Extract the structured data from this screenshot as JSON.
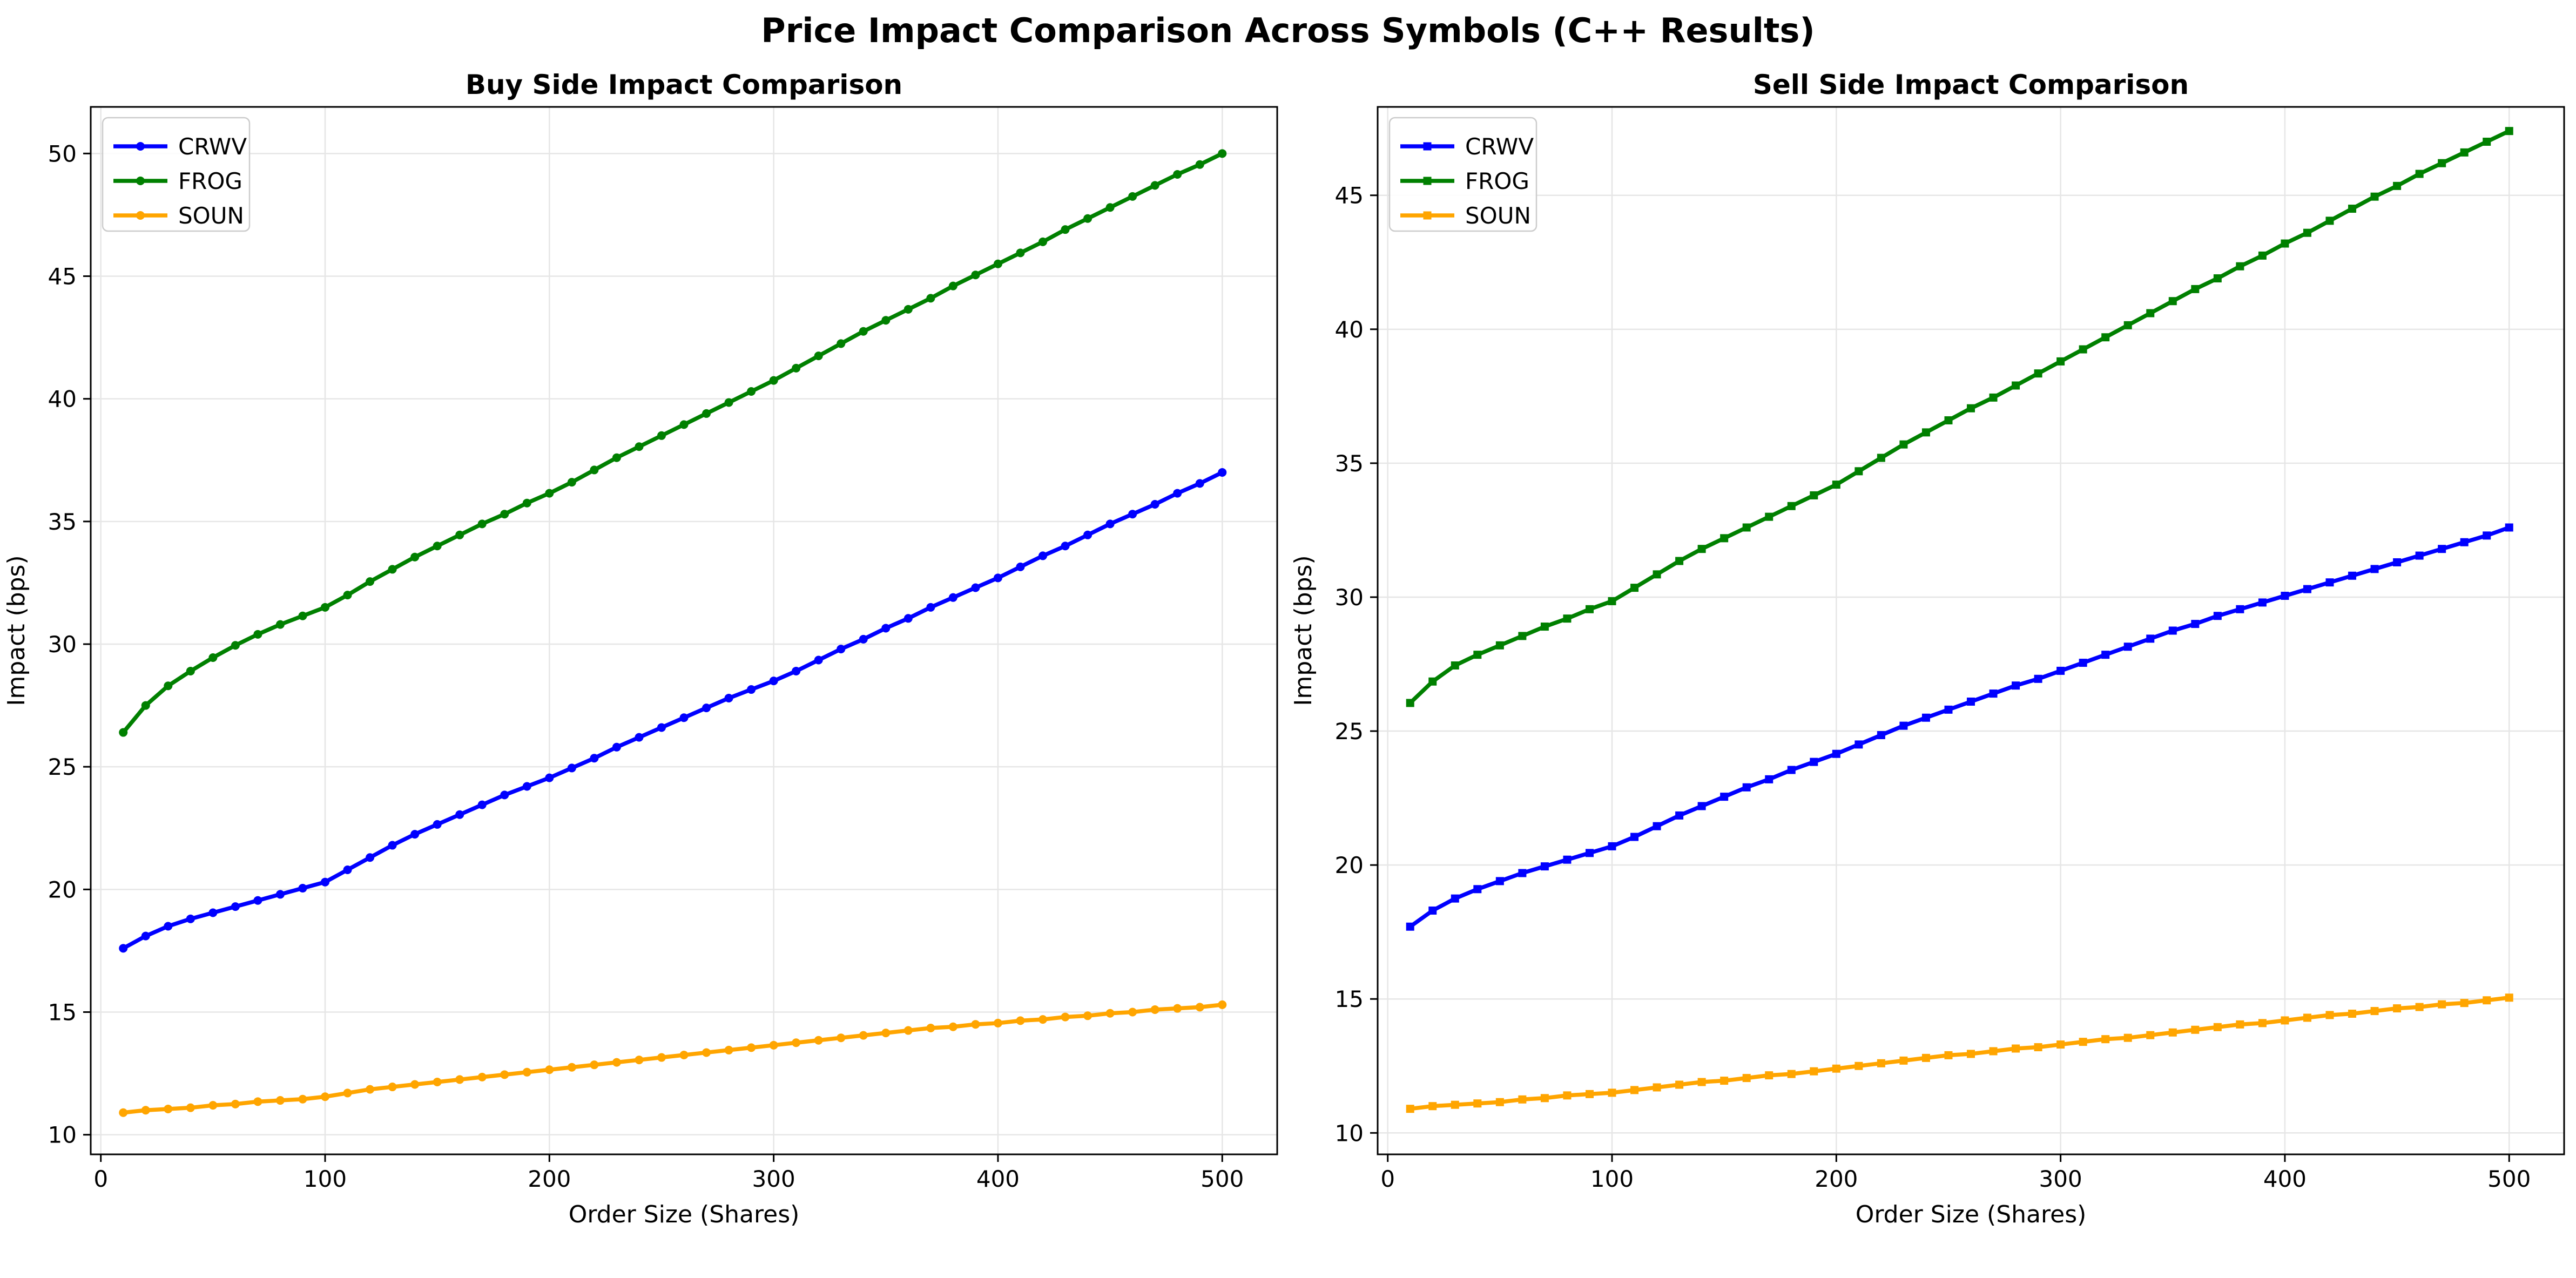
{
  "figure_title": "Price Impact Comparison Across Symbols (C++ Results)",
  "series_colors": {
    "CRWV": "#0000ff",
    "FROG": "#008000",
    "SOUN": "#ffa500"
  },
  "chart_data": [
    {
      "type": "line",
      "title": "Buy Side Impact Comparison",
      "xlabel": "Order Size (Shares)",
      "ylabel": "Impact (bps)",
      "xlim": [
        -4.5,
        524.5
      ],
      "ylim": [
        9.2,
        51.9
      ],
      "xticks": [
        0,
        100,
        200,
        300,
        400,
        500
      ],
      "yticks": [
        10,
        15,
        20,
        25,
        30,
        35,
        40,
        45,
        50
      ],
      "grid": true,
      "legend_position": "upper-left",
      "marker": "circle",
      "x": [
        10,
        20,
        30,
        40,
        50,
        60,
        70,
        80,
        90,
        100,
        110,
        120,
        130,
        140,
        150,
        160,
        170,
        180,
        190,
        200,
        210,
        220,
        230,
        240,
        250,
        260,
        270,
        280,
        290,
        300,
        310,
        320,
        330,
        340,
        350,
        360,
        370,
        380,
        390,
        400,
        410,
        420,
        430,
        440,
        450,
        460,
        470,
        480,
        490,
        500
      ],
      "series": [
        {
          "name": "CRWV",
          "values": [
            17.6,
            18.1,
            18.5,
            18.8,
            19.05,
            19.3,
            19.55,
            19.8,
            20.05,
            20.3,
            20.8,
            21.3,
            21.8,
            22.25,
            22.65,
            23.05,
            23.45,
            23.85,
            24.2,
            24.55,
            24.95,
            25.35,
            25.8,
            26.2,
            26.6,
            27.0,
            27.4,
            27.8,
            28.15,
            28.5,
            28.9,
            29.35,
            29.8,
            30.2,
            30.65,
            31.05,
            31.5,
            31.9,
            32.3,
            32.7,
            33.15,
            33.6,
            34.0,
            34.45,
            34.9,
            35.3,
            35.7,
            36.15,
            36.55,
            37.0
          ]
        },
        {
          "name": "FROG",
          "values": [
            26.4,
            27.5,
            28.3,
            28.9,
            29.45,
            29.95,
            30.4,
            30.8,
            31.15,
            31.5,
            32.0,
            32.55,
            33.05,
            33.55,
            34.0,
            34.45,
            34.9,
            35.3,
            35.75,
            36.15,
            36.6,
            37.1,
            37.6,
            38.05,
            38.5,
            38.95,
            39.4,
            39.85,
            40.3,
            40.75,
            41.25,
            41.75,
            42.25,
            42.75,
            43.2,
            43.65,
            44.1,
            44.6,
            45.05,
            45.5,
            45.95,
            46.4,
            46.9,
            47.35,
            47.8,
            48.25,
            48.7,
            49.15,
            49.55,
            50.0
          ]
        },
        {
          "name": "SOUN",
          "values": [
            10.9,
            11.0,
            11.05,
            11.1,
            11.2,
            11.25,
            11.35,
            11.4,
            11.45,
            11.55,
            11.7,
            11.85,
            11.95,
            12.05,
            12.15,
            12.25,
            12.35,
            12.45,
            12.55,
            12.65,
            12.75,
            12.85,
            12.95,
            13.05,
            13.15,
            13.25,
            13.35,
            13.45,
            13.55,
            13.65,
            13.75,
            13.85,
            13.95,
            14.05,
            14.15,
            14.25,
            14.35,
            14.4,
            14.5,
            14.55,
            14.65,
            14.7,
            14.8,
            14.85,
            14.95,
            15.0,
            15.1,
            15.15,
            15.2,
            15.3
          ]
        }
      ]
    },
    {
      "type": "line",
      "title": "Sell Side Impact Comparison",
      "xlabel": "Order Size (Shares)",
      "ylabel": "Impact (bps)",
      "xlim": [
        -4.5,
        524.5
      ],
      "ylim": [
        9.2,
        48.3
      ],
      "xticks": [
        0,
        100,
        200,
        300,
        400,
        500
      ],
      "yticks": [
        10,
        15,
        20,
        25,
        30,
        35,
        40,
        45
      ],
      "grid": true,
      "legend_position": "upper-left",
      "marker": "square",
      "x": [
        10,
        20,
        30,
        40,
        50,
        60,
        70,
        80,
        90,
        100,
        110,
        120,
        130,
        140,
        150,
        160,
        170,
        180,
        190,
        200,
        210,
        220,
        230,
        240,
        250,
        260,
        270,
        280,
        290,
        300,
        310,
        320,
        330,
        340,
        350,
        360,
        370,
        380,
        390,
        400,
        410,
        420,
        430,
        440,
        450,
        460,
        470,
        480,
        490,
        500
      ],
      "series": [
        {
          "name": "CRWV",
          "values": [
            17.7,
            18.3,
            18.75,
            19.1,
            19.4,
            19.7,
            19.95,
            20.2,
            20.45,
            20.7,
            21.05,
            21.45,
            21.85,
            22.2,
            22.55,
            22.9,
            23.2,
            23.55,
            23.85,
            24.15,
            24.5,
            24.85,
            25.2,
            25.5,
            25.8,
            26.1,
            26.4,
            26.7,
            26.95,
            27.25,
            27.55,
            27.85,
            28.15,
            28.45,
            28.75,
            29.0,
            29.3,
            29.55,
            29.8,
            30.05,
            30.3,
            30.55,
            30.8,
            31.05,
            31.3,
            31.55,
            31.8,
            32.05,
            32.3,
            32.6
          ]
        },
        {
          "name": "FROG",
          "values": [
            26.05,
            26.85,
            27.45,
            27.85,
            28.2,
            28.55,
            28.9,
            29.2,
            29.55,
            29.85,
            30.35,
            30.85,
            31.35,
            31.8,
            32.2,
            32.6,
            33.0,
            33.4,
            33.8,
            34.2,
            34.7,
            35.2,
            35.7,
            36.15,
            36.6,
            37.05,
            37.45,
            37.9,
            38.35,
            38.8,
            39.25,
            39.7,
            40.15,
            40.6,
            41.05,
            41.5,
            41.9,
            42.35,
            42.75,
            43.2,
            43.6,
            44.05,
            44.5,
            44.95,
            45.35,
            45.8,
            46.2,
            46.6,
            47.0,
            47.4
          ]
        },
        {
          "name": "SOUN",
          "values": [
            10.9,
            11.0,
            11.05,
            11.1,
            11.15,
            11.25,
            11.3,
            11.4,
            11.45,
            11.5,
            11.6,
            11.7,
            11.8,
            11.9,
            11.95,
            12.05,
            12.15,
            12.2,
            12.3,
            12.4,
            12.5,
            12.6,
            12.7,
            12.8,
            12.9,
            12.95,
            13.05,
            13.15,
            13.2,
            13.3,
            13.4,
            13.5,
            13.55,
            13.65,
            13.75,
            13.85,
            13.95,
            14.05,
            14.1,
            14.2,
            14.3,
            14.4,
            14.45,
            14.55,
            14.65,
            14.7,
            14.8,
            14.85,
            14.95,
            15.05
          ]
        }
      ]
    }
  ]
}
